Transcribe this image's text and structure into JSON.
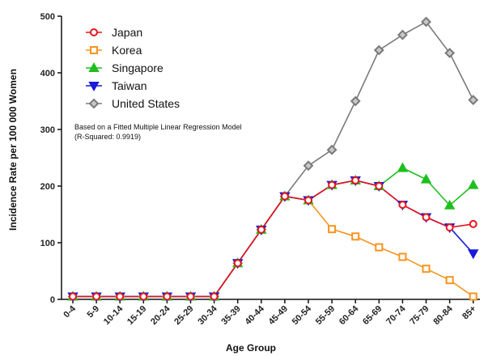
{
  "chart_data": {
    "type": "line",
    "xlabel": "Age Group",
    "ylabel": "Incidence Rate per 100 000 Women",
    "ylim": [
      0,
      500
    ],
    "yticks": [
      0,
      100,
      200,
      300,
      400,
      500
    ],
    "categories": [
      "0-4",
      "5-9",
      "10-14",
      "15-19",
      "20-24",
      "25-29",
      "30-34",
      "35-39",
      "40-44",
      "45-49",
      "50-54",
      "55-59",
      "60-64",
      "65-69",
      "70-74",
      "75-79",
      "80-84",
      "85+"
    ],
    "legend_position": "top-left",
    "annotation": {
      "line1": "Based on a Fitted Multiple Linear Regression Model",
      "line2": "(R-Squared: 0.9919)"
    },
    "series": [
      {
        "name": "Japan",
        "color": "#e8141c",
        "marker": "circle",
        "values": [
          5,
          5,
          5,
          5,
          5,
          5,
          5,
          64,
          123,
          182,
          175,
          202,
          210,
          200,
          167,
          145,
          127,
          133
        ]
      },
      {
        "name": "Korea",
        "color": "#f7941d",
        "marker": "square",
        "values": [
          5,
          5,
          5,
          5,
          5,
          5,
          5,
          64,
          123,
          182,
          175,
          124,
          111,
          92,
          75,
          54,
          34,
          5
        ]
      },
      {
        "name": "Singapore",
        "color": "#1fbf1f",
        "marker": "triangle-up",
        "values": [
          5,
          5,
          5,
          5,
          5,
          5,
          5,
          64,
          123,
          182,
          175,
          202,
          210,
          200,
          232,
          212,
          166,
          202
        ]
      },
      {
        "name": "Taiwan",
        "color": "#1a1ad8",
        "marker": "triangle-down",
        "values": [
          5,
          5,
          5,
          5,
          5,
          5,
          5,
          64,
          123,
          182,
          175,
          202,
          210,
          200,
          167,
          145,
          127,
          81
        ]
      },
      {
        "name": "United States",
        "color": "#7a7a7a",
        "marker": "diamond",
        "values": [
          5,
          5,
          5,
          5,
          5,
          5,
          5,
          64,
          123,
          182,
          236,
          264,
          350,
          440,
          467,
          490,
          435,
          352
        ]
      }
    ]
  }
}
